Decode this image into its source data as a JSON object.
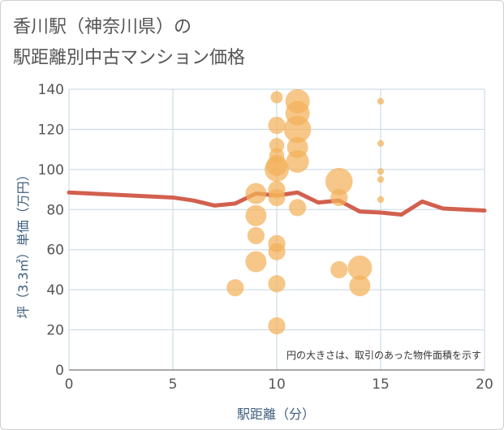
{
  "title_lines": [
    "香川駅（神奈川県）の",
    "駅距離別中古マンション価格"
  ],
  "chart_data": {
    "type": "scatter",
    "xlabel": "駅距離（分）",
    "ylabel": "坪（3.3㎡）単価（万円）",
    "xlim": [
      0,
      20
    ],
    "ylim": [
      0,
      140
    ],
    "x_ticks": [
      0,
      5,
      10,
      15,
      20
    ],
    "y_ticks": [
      0,
      20,
      40,
      60,
      80,
      100,
      120,
      140
    ],
    "grid": true,
    "note": "円の大きさは、取引のあった物件面積を示す",
    "colors": {
      "bubble": "#f2b25a",
      "line": "#d2604e",
      "grid": "#c5d5e2",
      "axis_text": "#3e5f7e"
    },
    "bubbles": [
      {
        "x": 8,
        "y": 41,
        "size": 2
      },
      {
        "x": 9,
        "y": 88,
        "size": 3
      },
      {
        "x": 9,
        "y": 77,
        "size": 3
      },
      {
        "x": 9,
        "y": 67,
        "size": 2
      },
      {
        "x": 9,
        "y": 54,
        "size": 3
      },
      {
        "x": 10,
        "y": 136,
        "size": 1
      },
      {
        "x": 10,
        "y": 122,
        "size": 2
      },
      {
        "x": 10,
        "y": 112,
        "size": 1.5
      },
      {
        "x": 10,
        "y": 107,
        "size": 1.5
      },
      {
        "x": 10,
        "y": 102,
        "size": 3
      },
      {
        "x": 10,
        "y": 100,
        "size": 4
      },
      {
        "x": 10,
        "y": 90,
        "size": 2
      },
      {
        "x": 10,
        "y": 86,
        "size": 2
      },
      {
        "x": 10,
        "y": 63,
        "size": 2
      },
      {
        "x": 10,
        "y": 59,
        "size": 2
      },
      {
        "x": 10,
        "y": 43,
        "size": 2
      },
      {
        "x": 10,
        "y": 22,
        "size": 2
      },
      {
        "x": 11,
        "y": 134,
        "size": 4
      },
      {
        "x": 11,
        "y": 128,
        "size": 4
      },
      {
        "x": 11,
        "y": 120,
        "size": 5
      },
      {
        "x": 11,
        "y": 111,
        "size": 3
      },
      {
        "x": 11,
        "y": 104,
        "size": 3.5
      },
      {
        "x": 11,
        "y": 81,
        "size": 2
      },
      {
        "x": 13,
        "y": 94,
        "size": 5
      },
      {
        "x": 13,
        "y": 86,
        "size": 2
      },
      {
        "x": 13,
        "y": 50,
        "size": 2
      },
      {
        "x": 14,
        "y": 51,
        "size": 4
      },
      {
        "x": 14,
        "y": 42,
        "size": 3
      },
      {
        "x": 15,
        "y": 134,
        "size": 0.3
      },
      {
        "x": 15,
        "y": 113,
        "size": 0.3
      },
      {
        "x": 15,
        "y": 99,
        "size": 0.3
      },
      {
        "x": 15,
        "y": 95,
        "size": 0.3
      },
      {
        "x": 15,
        "y": 85,
        "size": 0.3
      }
    ],
    "line": {
      "x": [
        0,
        1,
        2,
        3,
        4,
        5,
        6,
        7,
        8,
        9,
        10,
        11,
        12,
        13,
        14,
        15,
        16,
        17,
        18,
        19,
        20
      ],
      "y": [
        88.5,
        88,
        87.5,
        87,
        86.5,
        86,
        84.5,
        82,
        83,
        88,
        87,
        88.5,
        83.5,
        84.5,
        79,
        78.5,
        77.5,
        84,
        80.5,
        80,
        79.5
      ]
    }
  }
}
